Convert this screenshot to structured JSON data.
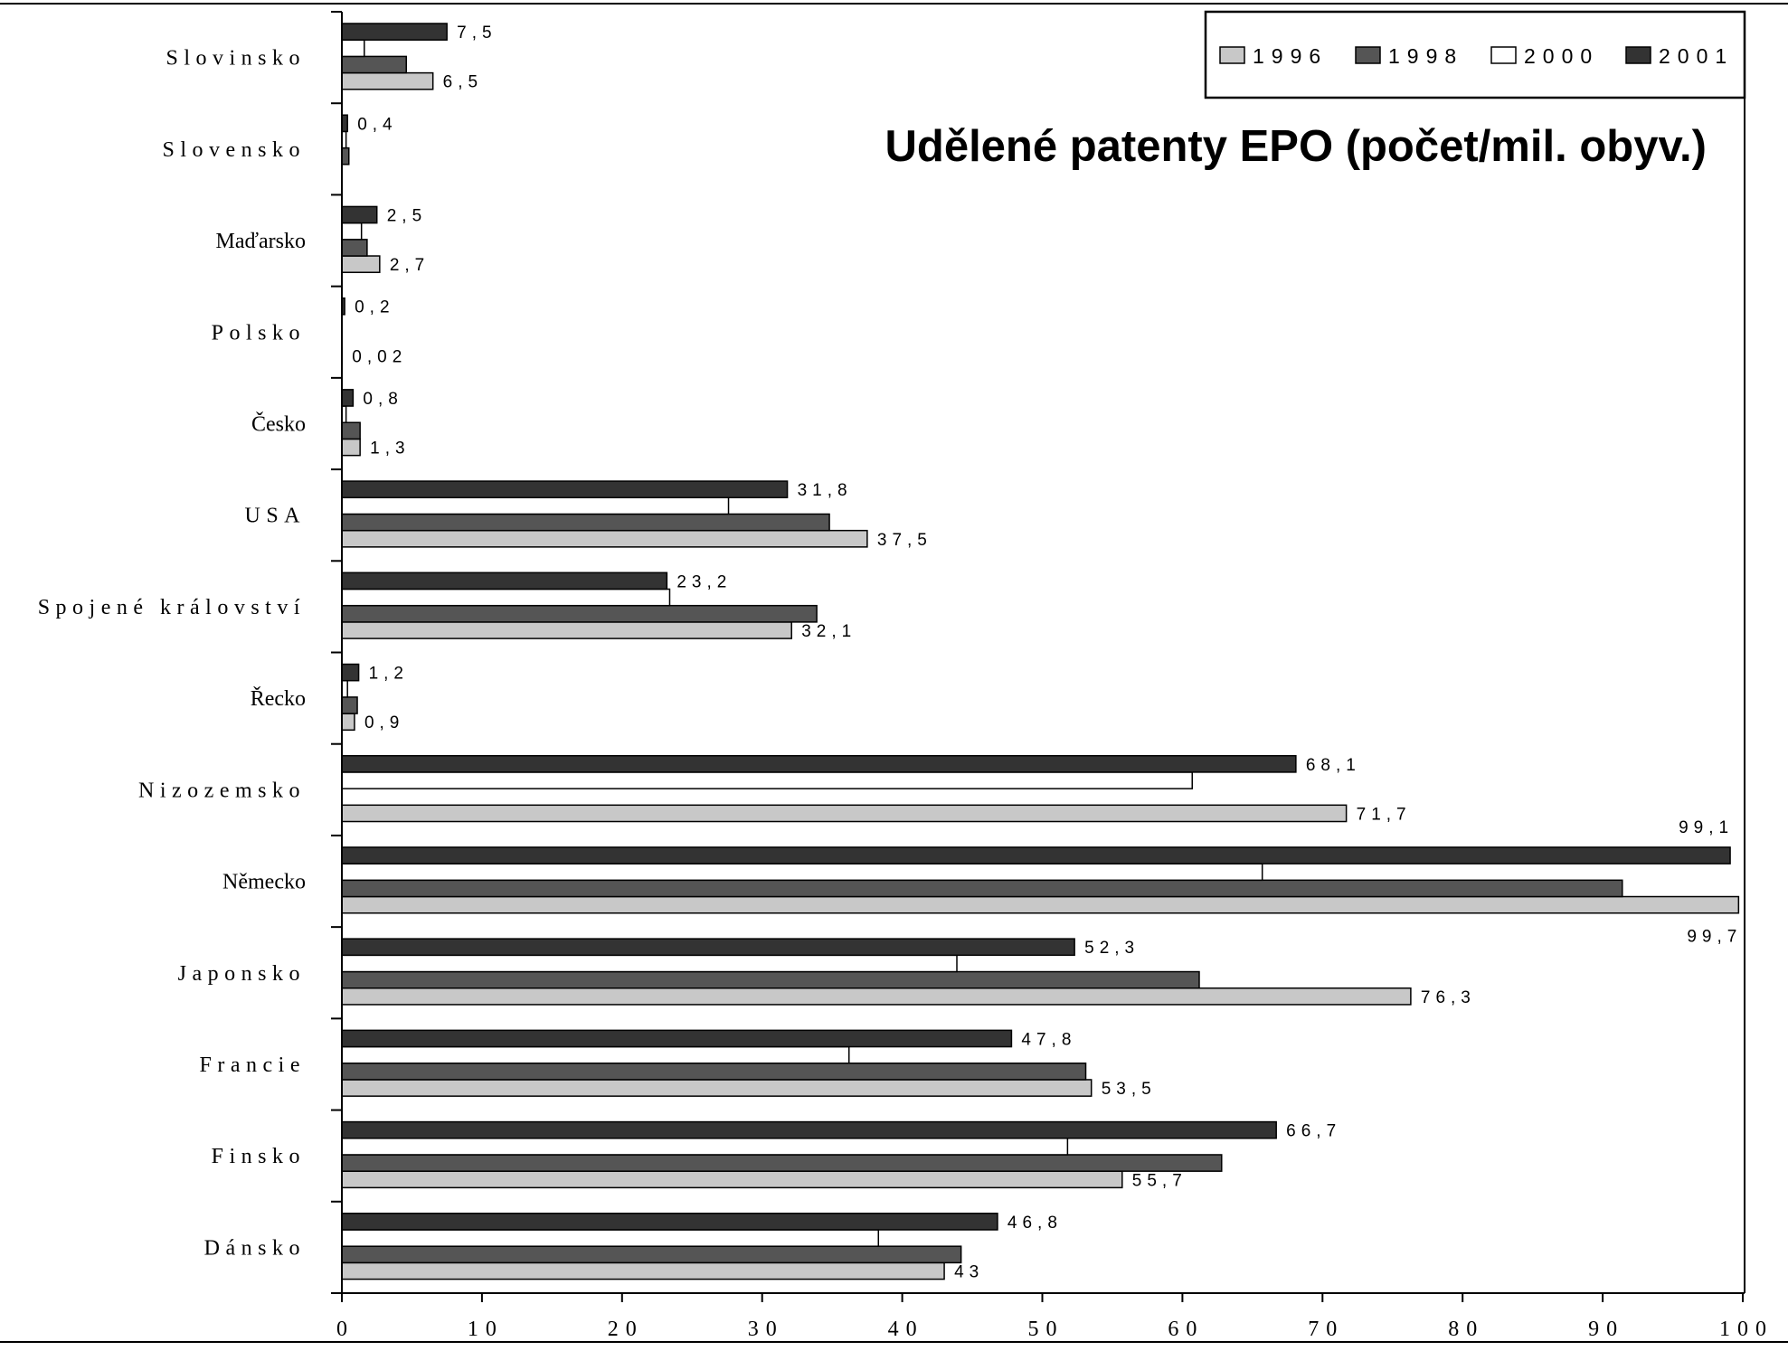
{
  "chart_data": {
    "type": "bar",
    "orientation": "horizontal",
    "title": "Udělené patenty EPO (počet/mil. obyv.)",
    "categories": [
      "Slovinsko",
      "Slovensko",
      "Maďarsko",
      "Polsko",
      "Česko",
      "USA",
      "Spojené království",
      "Řecko",
      "Nizozemsko",
      "Německo",
      "Japonsko",
      "Francie",
      "Finsko",
      "Dánsko"
    ],
    "series": [
      {
        "name": "1996",
        "color": "#c8c8c8",
        "values": [
          6.5,
          null,
          2.7,
          0.02,
          1.3,
          37.5,
          32.1,
          0.9,
          71.7,
          99.7,
          76.3,
          53.5,
          55.7,
          43
        ],
        "data_labels": [
          "6,5",
          null,
          "2,7",
          "0,02",
          "1,3",
          "37,5",
          "32,1",
          "0,9",
          "71,7",
          "99,7",
          "76,3",
          "53,5",
          "55,7",
          "43"
        ]
      },
      {
        "name": "1998",
        "color": "#555555",
        "values": [
          4.6,
          0.5,
          1.8,
          null,
          1.3,
          34.8,
          33.9,
          1.1,
          null,
          91.4,
          61.2,
          53.1,
          62.8,
          44.2
        ]
      },
      {
        "name": "2000",
        "color": "#ffffff",
        "values": [
          1.6,
          0.3,
          1.4,
          null,
          0.3,
          27.6,
          23.4,
          0.4,
          60.7,
          65.7,
          43.9,
          36.2,
          51.8,
          38.3
        ]
      },
      {
        "name": "2001",
        "color": "#333333",
        "values": [
          7.5,
          0.4,
          2.5,
          0.2,
          0.8,
          31.8,
          23.2,
          1.2,
          68.1,
          99.1,
          52.3,
          47.8,
          66.7,
          46.8
        ],
        "data_labels": [
          "7,5",
          "0,4",
          "2,5",
          "0,2",
          "0,8",
          "31,8",
          "23,2",
          "1,2",
          "68,1",
          "99,1",
          "52,3",
          "47,8",
          "66,7",
          "46,8"
        ]
      }
    ],
    "xlim": [
      0,
      100
    ],
    "x_ticks": [
      "0",
      "10",
      "20",
      "30",
      "40",
      "50",
      "60",
      "70",
      "80",
      "90",
      "100"
    ],
    "legend": "top-right",
    "grid": false
  }
}
